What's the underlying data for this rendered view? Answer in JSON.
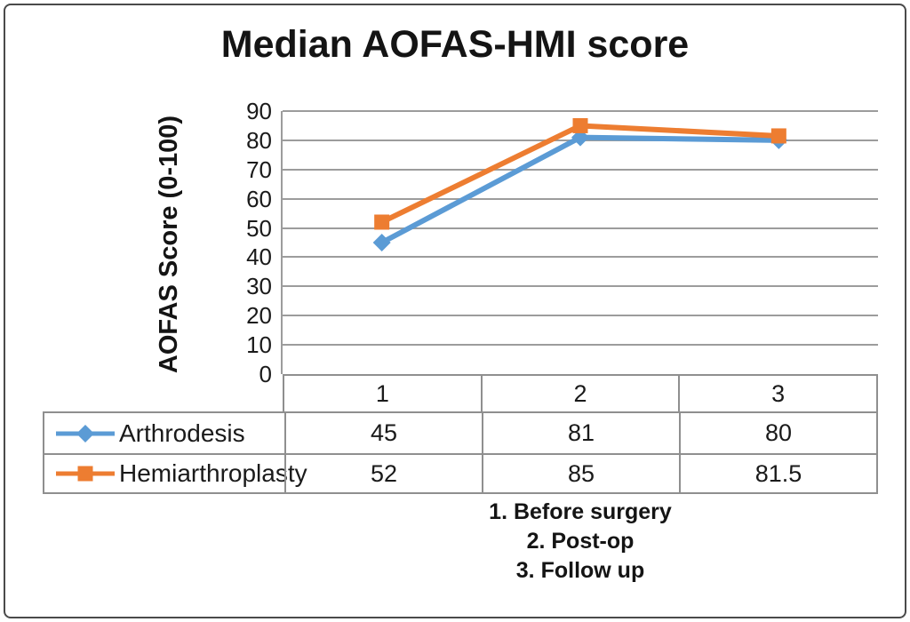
{
  "chart_data": {
    "type": "line",
    "title": "Median AOFAS-HMI score",
    "xlabel": "",
    "ylabel": "AOFAS Score (0-100)",
    "categories": [
      "1",
      "2",
      "3"
    ],
    "series": [
      {
        "name": "Arthrodesis",
        "values": [
          45,
          81,
          80
        ],
        "color": "#5B9BD5",
        "marker": "diamond"
      },
      {
        "name": "Hemiarthroplasty",
        "values": [
          52,
          85,
          81.5
        ],
        "color": "#ED7D31",
        "marker": "square"
      }
    ],
    "ylim": [
      0,
      90
    ],
    "ytick_step": 10,
    "grid": true,
    "gridline_color": "#9c9c9c",
    "legend_position": "table-left"
  },
  "footnotes": [
    "1. Before surgery",
    "2. Post-op",
    "3. Follow up"
  ]
}
